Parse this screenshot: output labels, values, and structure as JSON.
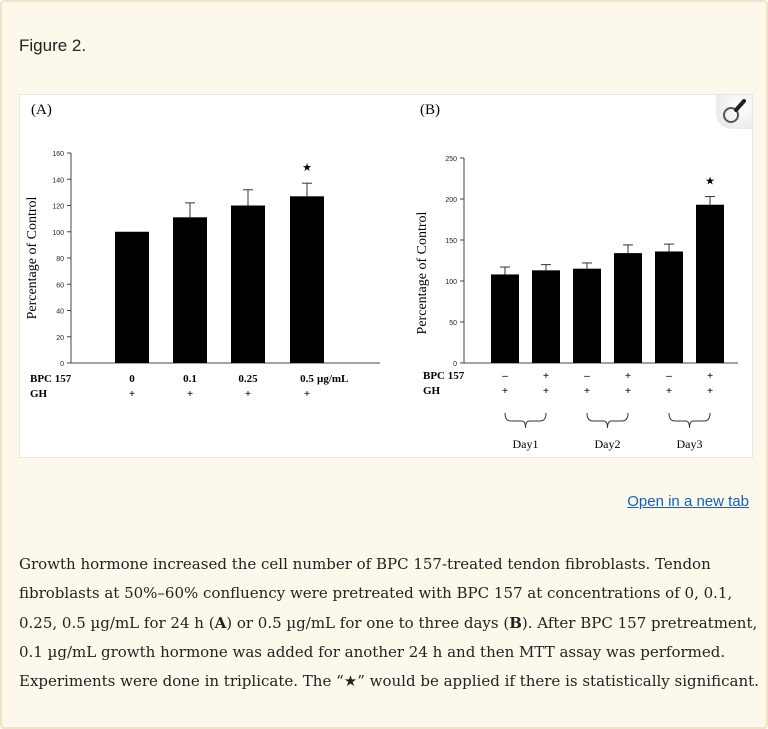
{
  "figure": {
    "title": "Figure 2.",
    "open_link": "Open in a new tab",
    "zoom_icon": "magnifier-icon"
  },
  "caption": {
    "p1": "Growth hormone increased the cell number of BPC 157-treated tendon fibroblasts. Tendon fibroblasts at 50%–60% confluency were pretreated with BPC 157 at concentrations of 0, 0.1, 0.25, 0.5 µg/mL for 24 h (",
    "a": "A",
    "p2": ") or 0.5 µg/mL for one to three days (",
    "b": "B",
    "p3": "). After BPC 157 pretreatment, 0.1 µg/mL growth hormone was added for another 24 h and then MTT assay was performed. Experiments were done in triplicate. The “★” would be applied if there is statistically significant."
  },
  "chart_data": [
    {
      "type": "bar",
      "panel_label": "(A)",
      "ylabel": "Percentage of Control",
      "ylim": [
        0,
        160
      ],
      "yticks": [
        0,
        20,
        40,
        60,
        80,
        100,
        120,
        140,
        160
      ],
      "row_labels": [
        "BPC 157",
        "GH"
      ],
      "categories": [
        "0",
        "0.1",
        "0.25",
        "0.5"
      ],
      "unit": "µg/mL",
      "gh_row": [
        "+",
        "+",
        "+",
        "+"
      ],
      "values": [
        100,
        111,
        120,
        127
      ],
      "errors": [
        0,
        11,
        12,
        10
      ],
      "significant": [
        false,
        false,
        false,
        true
      ],
      "significance_mark": "★",
      "bar_color": "#000000"
    },
    {
      "type": "bar",
      "panel_label": "(B)",
      "ylabel": "Percentage of Control",
      "ylim": [
        0,
        250
      ],
      "yticks": [
        0,
        50,
        100,
        150,
        200,
        250
      ],
      "row_labels": [
        "BPC 157",
        "GH"
      ],
      "categories": [
        "–",
        "+",
        "–",
        "+",
        "–",
        "+"
      ],
      "gh_row": [
        "+",
        "+",
        "+",
        "+",
        "+",
        "+"
      ],
      "groups": [
        "Day1",
        "Day2",
        "Day3"
      ],
      "values": [
        108,
        113,
        115,
        134,
        136,
        193
      ],
      "errors": [
        9,
        7,
        7,
        10,
        9,
        10
      ],
      "significant": [
        false,
        false,
        false,
        false,
        false,
        true
      ],
      "significance_mark": "★",
      "bar_color": "#000000"
    }
  ]
}
